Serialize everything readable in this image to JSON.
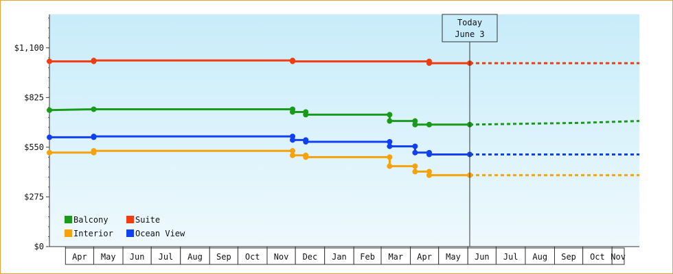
{
  "chart_data": {
    "type": "line",
    "title": "",
    "xlabel": "",
    "ylabel": "",
    "ylim": [
      0,
      1285
    ],
    "y_ticks": [
      {
        "value": 0,
        "label": "$0"
      },
      {
        "value": 275,
        "label": "$275"
      },
      {
        "value": 550,
        "label": "$550"
      },
      {
        "value": 825,
        "label": "$825"
      },
      {
        "value": 1100,
        "label": "$1,100"
      }
    ],
    "x_range": [
      "2023-03-15",
      "2024-11-30"
    ],
    "x_ticks": [
      {
        "date": "2023-04-01",
        "label": "Apr"
      },
      {
        "date": "2023-05-01",
        "label": "May"
      },
      {
        "date": "2023-06-01",
        "label": "Jun"
      },
      {
        "date": "2023-07-01",
        "label": "Jul"
      },
      {
        "date": "2023-08-01",
        "label": "Aug"
      },
      {
        "date": "2023-09-01",
        "label": "Sep"
      },
      {
        "date": "2023-10-01",
        "label": "Oct"
      },
      {
        "date": "2023-11-01",
        "label": "Nov"
      },
      {
        "date": "2023-12-01",
        "label": "Dec"
      },
      {
        "date": "2024-01-01",
        "label": "Jan"
      },
      {
        "date": "2024-02-01",
        "label": "Feb"
      },
      {
        "date": "2024-03-01",
        "label": "Mar"
      },
      {
        "date": "2024-04-01",
        "label": "Apr"
      },
      {
        "date": "2024-05-01",
        "label": "May"
      },
      {
        "date": "2024-06-01",
        "label": "Jun"
      },
      {
        "date": "2024-07-01",
        "label": "Jul"
      },
      {
        "date": "2024-08-01",
        "label": "Aug"
      },
      {
        "date": "2024-09-01",
        "label": "Sep"
      },
      {
        "date": "2024-10-01",
        "label": "Oct"
      },
      {
        "date": "2024-11-01",
        "label": "Nov"
      }
    ],
    "today": {
      "date": "2024-06-03",
      "label_line1": "Today",
      "label_line2": "June 3"
    },
    "grid": false,
    "legend_position": "bottom-left",
    "series": [
      {
        "name": "Balcony",
        "color": "#1a9a1a",
        "points": [
          {
            "date": "2023-03-15",
            "value": 755
          },
          {
            "date": "2023-05-01",
            "value": 760
          },
          {
            "date": "2023-11-28",
            "value": 760
          },
          {
            "date": "2023-11-28",
            "value": 745
          },
          {
            "date": "2023-12-12",
            "value": 745
          },
          {
            "date": "2023-12-12",
            "value": 730
          },
          {
            "date": "2024-03-10",
            "value": 730
          },
          {
            "date": "2024-03-10",
            "value": 695
          },
          {
            "date": "2024-04-06",
            "value": 695
          },
          {
            "date": "2024-04-06",
            "value": 675
          },
          {
            "date": "2024-04-21",
            "value": 675
          },
          {
            "date": "2024-04-21",
            "value": 675
          },
          {
            "date": "2024-06-03",
            "value": 675
          }
        ],
        "projection": [
          {
            "date": "2024-06-03",
            "value": 675
          },
          {
            "date": "2024-08-01",
            "value": 680
          },
          {
            "date": "2024-10-01",
            "value": 685
          },
          {
            "date": "2024-11-30",
            "value": 695
          }
        ]
      },
      {
        "name": "Suite",
        "color": "#f03c10",
        "points": [
          {
            "date": "2023-03-15",
            "value": 1025
          },
          {
            "date": "2023-05-01",
            "value": 1025
          },
          {
            "date": "2023-05-01",
            "value": 1030
          },
          {
            "date": "2023-11-28",
            "value": 1030
          },
          {
            "date": "2023-11-28",
            "value": 1025
          },
          {
            "date": "2024-04-21",
            "value": 1025
          },
          {
            "date": "2024-04-21",
            "value": 1015
          },
          {
            "date": "2024-06-03",
            "value": 1015
          }
        ],
        "projection": [
          {
            "date": "2024-06-03",
            "value": 1015
          },
          {
            "date": "2024-11-30",
            "value": 1015
          }
        ]
      },
      {
        "name": "Interior",
        "color": "#f5a20c",
        "points": [
          {
            "date": "2023-03-15",
            "value": 520
          },
          {
            "date": "2023-05-01",
            "value": 520
          },
          {
            "date": "2023-05-01",
            "value": 530
          },
          {
            "date": "2023-11-28",
            "value": 530
          },
          {
            "date": "2023-11-28",
            "value": 505
          },
          {
            "date": "2023-12-12",
            "value": 505
          },
          {
            "date": "2023-12-12",
            "value": 495
          },
          {
            "date": "2024-03-10",
            "value": 495
          },
          {
            "date": "2024-03-10",
            "value": 445
          },
          {
            "date": "2024-04-06",
            "value": 445
          },
          {
            "date": "2024-04-06",
            "value": 415
          },
          {
            "date": "2024-04-21",
            "value": 415
          },
          {
            "date": "2024-04-21",
            "value": 395
          },
          {
            "date": "2024-06-03",
            "value": 395
          }
        ],
        "projection": [
          {
            "date": "2024-06-03",
            "value": 395
          },
          {
            "date": "2024-11-30",
            "value": 395
          }
        ]
      },
      {
        "name": "Ocean View",
        "color": "#1040f0",
        "points": [
          {
            "date": "2023-03-15",
            "value": 605
          },
          {
            "date": "2023-05-01",
            "value": 605
          },
          {
            "date": "2023-05-01",
            "value": 610
          },
          {
            "date": "2023-11-28",
            "value": 610
          },
          {
            "date": "2023-11-28",
            "value": 590
          },
          {
            "date": "2023-12-12",
            "value": 590
          },
          {
            "date": "2023-12-12",
            "value": 580
          },
          {
            "date": "2024-03-10",
            "value": 580
          },
          {
            "date": "2024-03-10",
            "value": 555
          },
          {
            "date": "2024-04-06",
            "value": 555
          },
          {
            "date": "2024-04-06",
            "value": 520
          },
          {
            "date": "2024-04-21",
            "value": 520
          },
          {
            "date": "2024-04-21",
            "value": 510
          },
          {
            "date": "2024-06-03",
            "value": 510
          }
        ],
        "projection": [
          {
            "date": "2024-06-03",
            "value": 510
          },
          {
            "date": "2024-11-30",
            "value": 510
          }
        ]
      }
    ]
  }
}
